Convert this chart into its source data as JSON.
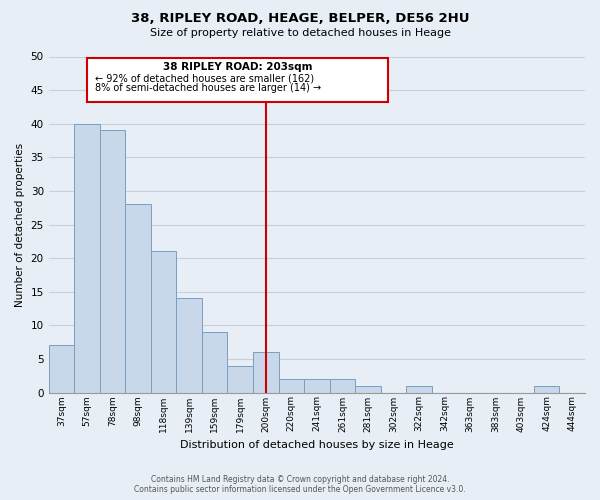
{
  "title": "38, RIPLEY ROAD, HEAGE, BELPER, DE56 2HU",
  "subtitle": "Size of property relative to detached houses in Heage",
  "xlabel": "Distribution of detached houses by size in Heage",
  "ylabel": "Number of detached properties",
  "bar_labels": [
    "37sqm",
    "57sqm",
    "78sqm",
    "98sqm",
    "118sqm",
    "139sqm",
    "159sqm",
    "179sqm",
    "200sqm",
    "220sqm",
    "241sqm",
    "261sqm",
    "281sqm",
    "302sqm",
    "322sqm",
    "342sqm",
    "363sqm",
    "383sqm",
    "403sqm",
    "424sqm",
    "444sqm"
  ],
  "bar_values": [
    7,
    40,
    39,
    28,
    21,
    14,
    9,
    4,
    6,
    2,
    2,
    2,
    1,
    0,
    1,
    0,
    0,
    0,
    0,
    1,
    0
  ],
  "bar_color": "#c8d8ea",
  "bar_edge_color": "#7a9fbf",
  "grid_color": "#c5cfe0",
  "background_color": "#e8eef6",
  "vline_x_index": 8,
  "vline_color": "#cc0000",
  "annotation_title": "38 RIPLEY ROAD: 203sqm",
  "annotation_line1": "← 92% of detached houses are smaller (162)",
  "annotation_line2": "8% of semi-detached houses are larger (14) →",
  "annotation_box_color": "#cc0000",
  "ylim": [
    0,
    50
  ],
  "yticks": [
    0,
    5,
    10,
    15,
    20,
    25,
    30,
    35,
    40,
    45,
    50
  ],
  "footnote1": "Contains HM Land Registry data © Crown copyright and database right 2024.",
  "footnote2": "Contains public sector information licensed under the Open Government Licence v3.0."
}
